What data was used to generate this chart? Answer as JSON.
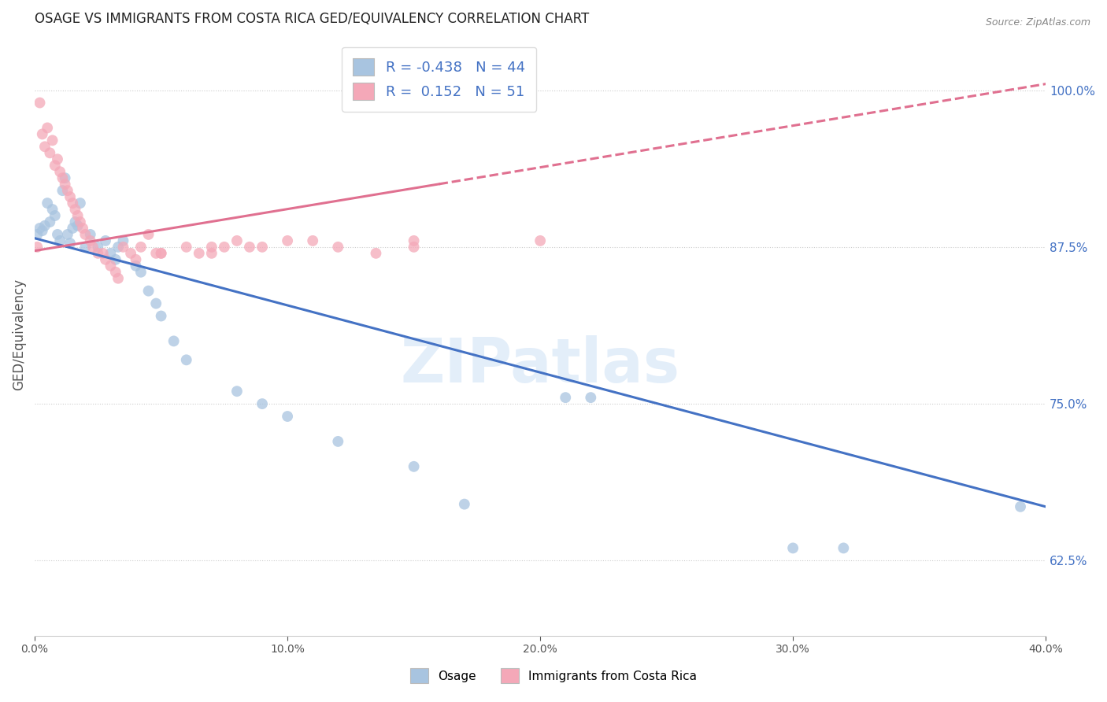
{
  "title": "OSAGE VS IMMIGRANTS FROM COSTA RICA GED/EQUIVALENCY CORRELATION CHART",
  "source": "Source: ZipAtlas.com",
  "ylabel": "GED/Equivalency",
  "yticks": [
    0.625,
    0.75,
    0.875,
    1.0
  ],
  "ytick_labels": [
    "62.5%",
    "75.0%",
    "87.5%",
    "100.0%"
  ],
  "xmin": 0.0,
  "xmax": 0.4,
  "ymin": 0.565,
  "ymax": 1.045,
  "legend_R1": "-0.438",
  "legend_N1": "44",
  "legend_R2": "0.152",
  "legend_N2": "51",
  "color_blue": "#a8c4e0",
  "color_pink": "#f4a8b8",
  "line_blue": "#4472c4",
  "line_pink": "#e07090",
  "watermark": "ZIPatlas",
  "blue_line_y0": 0.882,
  "blue_line_y1": 0.668,
  "pink_line_y0": 0.872,
  "pink_line_y1": 1.005,
  "osage_x": [
    0.001,
    0.002,
    0.003,
    0.004,
    0.005,
    0.006,
    0.007,
    0.008,
    0.009,
    0.01,
    0.011,
    0.012,
    0.013,
    0.014,
    0.015,
    0.016,
    0.017,
    0.018,
    0.02,
    0.022,
    0.025,
    0.028,
    0.03,
    0.032,
    0.033,
    0.035,
    0.04,
    0.042,
    0.045,
    0.048,
    0.05,
    0.055,
    0.06,
    0.08,
    0.09,
    0.1,
    0.12,
    0.15,
    0.17,
    0.21,
    0.22,
    0.3,
    0.32,
    0.39
  ],
  "osage_y": [
    0.885,
    0.89,
    0.888,
    0.892,
    0.91,
    0.895,
    0.905,
    0.9,
    0.885,
    0.88,
    0.92,
    0.93,
    0.885,
    0.878,
    0.89,
    0.895,
    0.892,
    0.91,
    0.875,
    0.885,
    0.875,
    0.88,
    0.87,
    0.865,
    0.875,
    0.88,
    0.86,
    0.855,
    0.84,
    0.83,
    0.82,
    0.8,
    0.785,
    0.76,
    0.75,
    0.74,
    0.72,
    0.7,
    0.67,
    0.755,
    0.755,
    0.635,
    0.635,
    0.668
  ],
  "costa_rica_x": [
    0.001,
    0.002,
    0.003,
    0.004,
    0.005,
    0.006,
    0.007,
    0.008,
    0.009,
    0.01,
    0.011,
    0.012,
    0.013,
    0.014,
    0.015,
    0.016,
    0.017,
    0.018,
    0.019,
    0.02,
    0.022,
    0.023,
    0.025,
    0.027,
    0.028,
    0.03,
    0.032,
    0.033,
    0.035,
    0.038,
    0.04,
    0.042,
    0.045,
    0.048,
    0.05,
    0.06,
    0.065,
    0.07,
    0.075,
    0.1,
    0.11,
    0.12,
    0.15,
    0.2,
    0.07,
    0.08,
    0.085,
    0.09,
    0.135,
    0.15,
    0.05
  ],
  "costa_rica_y": [
    0.875,
    0.99,
    0.965,
    0.955,
    0.97,
    0.95,
    0.96,
    0.94,
    0.945,
    0.935,
    0.93,
    0.925,
    0.92,
    0.915,
    0.91,
    0.905,
    0.9,
    0.895,
    0.89,
    0.885,
    0.88,
    0.875,
    0.87,
    0.87,
    0.865,
    0.86,
    0.855,
    0.85,
    0.875,
    0.87,
    0.865,
    0.875,
    0.885,
    0.87,
    0.87,
    0.875,
    0.87,
    0.875,
    0.875,
    0.88,
    0.88,
    0.875,
    0.88,
    0.88,
    0.87,
    0.88,
    0.875,
    0.875,
    0.87,
    0.875,
    0.87
  ]
}
